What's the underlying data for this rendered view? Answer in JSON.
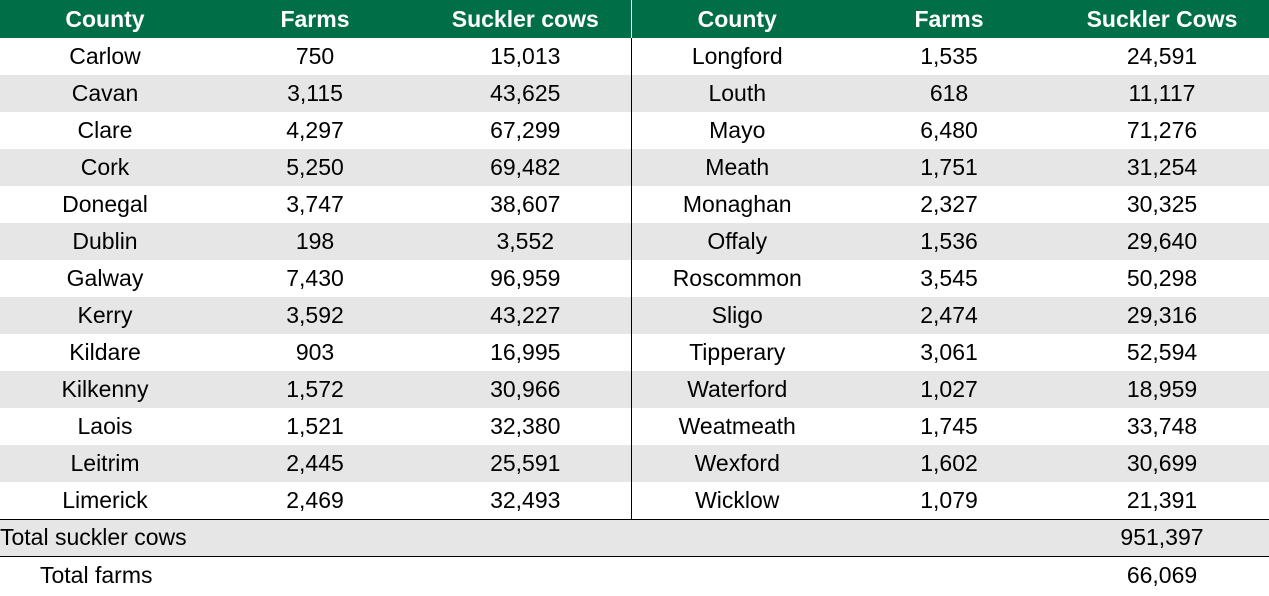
{
  "headers": {
    "left": {
      "county": "County",
      "farms": "Farms",
      "cows": "Suckler cows"
    },
    "right": {
      "county": "County",
      "farms": "Farms",
      "cows": "Suckler Cows"
    }
  },
  "rows": [
    {
      "l_county": "Carlow",
      "l_farms": "750",
      "l_cows": "15,013",
      "r_county": "Longford",
      "r_farms": "1,535",
      "r_cows": "24,591"
    },
    {
      "l_county": "Cavan",
      "l_farms": "3,115",
      "l_cows": "43,625",
      "r_county": "Louth",
      "r_farms": "618",
      "r_cows": "11,117"
    },
    {
      "l_county": "Clare",
      "l_farms": "4,297",
      "l_cows": "67,299",
      "r_county": "Mayo",
      "r_farms": "6,480",
      "r_cows": "71,276"
    },
    {
      "l_county": "Cork",
      "l_farms": "5,250",
      "l_cows": "69,482",
      "r_county": "Meath",
      "r_farms": "1,751",
      "r_cows": "31,254"
    },
    {
      "l_county": "Donegal",
      "l_farms": "3,747",
      "l_cows": "38,607",
      "r_county": "Monaghan",
      "r_farms": "2,327",
      "r_cows": "30,325"
    },
    {
      "l_county": "Dublin",
      "l_farms": "198",
      "l_cows": "3,552",
      "r_county": "Offaly",
      "r_farms": "1,536",
      "r_cows": "29,640"
    },
    {
      "l_county": "Galway",
      "l_farms": "7,430",
      "l_cows": "96,959",
      "r_county": "Roscommon",
      "r_farms": "3,545",
      "r_cows": "50,298"
    },
    {
      "l_county": "Kerry",
      "l_farms": "3,592",
      "l_cows": "43,227",
      "r_county": "Sligo",
      "r_farms": "2,474",
      "r_cows": "29,316"
    },
    {
      "l_county": "Kildare",
      "l_farms": "903",
      "l_cows": "16,995",
      "r_county": "Tipperary",
      "r_farms": "3,061",
      "r_cows": "52,594"
    },
    {
      "l_county": "Kilkenny",
      "l_farms": "1,572",
      "l_cows": "30,966",
      "r_county": "Waterford",
      "r_farms": "1,027",
      "r_cows": "18,959"
    },
    {
      "l_county": "Laois",
      "l_farms": "1,521",
      "l_cows": "32,380",
      "r_county": "Weatmeath",
      "r_farms": "1,745",
      "r_cows": "33,748"
    },
    {
      "l_county": "Leitrim",
      "l_farms": "2,445",
      "l_cows": "25,591",
      "r_county": "Wexford",
      "r_farms": "1,602",
      "r_cows": "30,699"
    },
    {
      "l_county": "Limerick",
      "l_farms": "2,469",
      "l_cows": "32,493",
      "r_county": "Wicklow",
      "r_farms": "1,079",
      "r_cows": "21,391"
    }
  ],
  "totals": {
    "cows_label": "Total suckler cows",
    "cows_value": "951,397",
    "farms_label": "Total farms",
    "farms_value": "66,069"
  },
  "colors": {
    "header_bg": "#006e46",
    "header_text": "#ffffff",
    "stripe": "#e6e6e6"
  }
}
